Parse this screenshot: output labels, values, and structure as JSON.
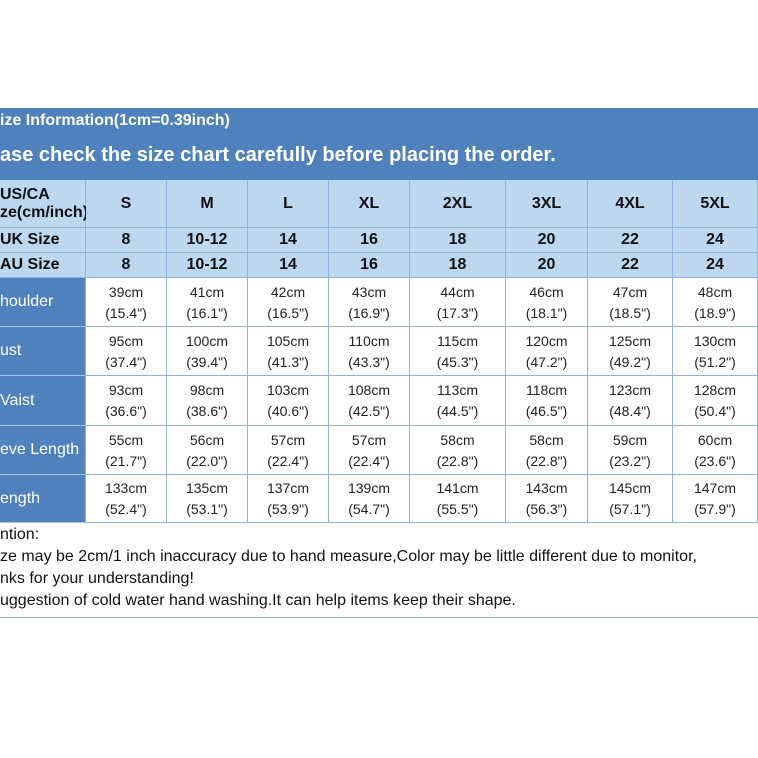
{
  "header": {
    "title": "ize Information(1cm=0.39inch)",
    "subtitle": "ase check the size chart carefully before placing the order."
  },
  "table": {
    "corner": [
      "US/CA",
      "ze(cm/inch)"
    ],
    "columns": [
      "S",
      "M",
      "L",
      "XL",
      "2XL",
      "3XL",
      "4XL",
      "5XL"
    ],
    "size_rows": [
      {
        "label": "UK Size",
        "values": [
          "8",
          "10-12",
          "14",
          "16",
          "18",
          "20",
          "22",
          "24"
        ]
      },
      {
        "label": "AU Size",
        "values": [
          "8",
          "10-12",
          "14",
          "16",
          "18",
          "20",
          "22",
          "24"
        ]
      }
    ],
    "rows": [
      {
        "label": "houlder",
        "cells": [
          [
            "39cm",
            "(15.4\")"
          ],
          [
            "41cm",
            "(16.1\")"
          ],
          [
            "42cm",
            "(16.5\")"
          ],
          [
            "43cm",
            "(16.9\")"
          ],
          [
            "44cm",
            "(17.3\")"
          ],
          [
            "46cm",
            "(18.1\")"
          ],
          [
            "47cm",
            "(18.5\")"
          ],
          [
            "48cm",
            "(18.9\")"
          ]
        ]
      },
      {
        "label": "ust",
        "cells": [
          [
            "95cm",
            "(37.4\")"
          ],
          [
            "100cm",
            "(39.4\")"
          ],
          [
            "105cm",
            "(41.3\")"
          ],
          [
            "110cm",
            "(43.3\")"
          ],
          [
            "115cm",
            "(45.3\")"
          ],
          [
            "120cm",
            "(47.2\")"
          ],
          [
            "125cm",
            "(49.2\")"
          ],
          [
            "130cm",
            "(51.2\")"
          ]
        ]
      },
      {
        "label": "Vaist",
        "cells": [
          [
            "93cm",
            "(36.6\")"
          ],
          [
            "98cm",
            "(38.6\")"
          ],
          [
            "103cm",
            "(40.6\")"
          ],
          [
            "108cm",
            "(42.5\")"
          ],
          [
            "113cm",
            "(44.5\")"
          ],
          [
            "118cm",
            "(46.5\")"
          ],
          [
            "123cm",
            "(48.4\")"
          ],
          [
            "128cm",
            "(50.4\")"
          ]
        ]
      },
      {
        "label": "eve Length",
        "cells": [
          [
            "55cm",
            "(21.7\")"
          ],
          [
            "56cm",
            "(22.0\")"
          ],
          [
            "57cm",
            "(22.4\")"
          ],
          [
            "57cm",
            "(22.4\")"
          ],
          [
            "58cm",
            "(22.8\")"
          ],
          [
            "58cm",
            "(22.8\")"
          ],
          [
            "59cm",
            "(23.2\")"
          ],
          [
            "60cm",
            "(23.6\")"
          ]
        ]
      },
      {
        "label": "ength",
        "cells": [
          [
            "133cm",
            "(52.4\")"
          ],
          [
            "135cm",
            "(53.1\")"
          ],
          [
            "137cm",
            "(53.9\")"
          ],
          [
            "139cm",
            "(54.7\")"
          ],
          [
            "141cm",
            "(55.5\")"
          ],
          [
            "143cm",
            "(56.3\")"
          ],
          [
            "145cm",
            "(57.1\")"
          ],
          [
            "147cm",
            "(57.9\")"
          ]
        ]
      }
    ]
  },
  "notes": [
    "ntion:",
    "ze may be 2cm/1 inch inaccuracy due to hand measure,Color may be little different due to monitor,",
    "nks for your understanding!",
    "uggestion of cold water hand washing.It can help items keep their shape."
  ]
}
